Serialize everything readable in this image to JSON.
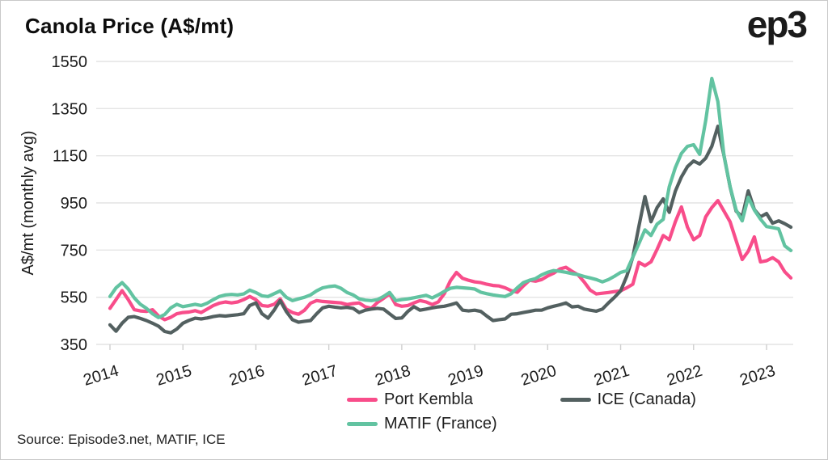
{
  "header": {
    "title": "Canola Price (A$/mt)",
    "logo": "ep3"
  },
  "source_note": "Source: Episode3.net, MATIF, ICE",
  "legend": [
    {
      "label": "Port Kembla",
      "color": "#f84d8a"
    },
    {
      "label": "ICE (Canada)",
      "color": "#536060"
    },
    {
      "label": "MATIF (France)",
      "color": "#62c3a1"
    }
  ],
  "chart_data": {
    "type": "line",
    "title": "Canola Price (A$/mt)",
    "ylabel": "A$/mt (monthly avg)",
    "xlabel": "",
    "ylim": [
      350,
      1550
    ],
    "yticks": [
      350,
      550,
      750,
      950,
      1150,
      1350,
      1550
    ],
    "xticks": [
      "2014",
      "2015",
      "2016",
      "2017",
      "2018",
      "2019",
      "2020",
      "2021",
      "2022",
      "2023"
    ],
    "x_frequency": "monthly",
    "x_range": "Jan 2014 - May 2023",
    "grid": "horizontal",
    "legend_position": "bottom",
    "colors": {
      "grid": "#e4e4e4",
      "tick": "#cfcfcf",
      "text": "#1c1c1c"
    },
    "series": [
      {
        "name": "Port Kembla",
        "color": "#f84d8a",
        "values": [
          503,
          540,
          578,
          540,
          497,
          492,
          490,
          497,
          470,
          455,
          465,
          480,
          485,
          487,
          493,
          485,
          500,
          515,
          525,
          530,
          526,
          530,
          540,
          553,
          540,
          515,
          512,
          520,
          543,
          500,
          485,
          478,
          495,
          525,
          536,
          532,
          530,
          528,
          526,
          519,
          523,
          526,
          509,
          503,
          528,
          545,
          564,
          519,
          512,
          515,
          526,
          536,
          530,
          519,
          530,
          565,
          620,
          655,
          630,
          622,
          615,
          612,
          605,
          600,
          598,
          590,
          578,
          571,
          598,
          622,
          618,
          625,
          640,
          652,
          670,
          677,
          660,
          645,
          615,
          580,
          564,
          567,
          570,
          574,
          577,
          590,
          605,
          698,
          684,
          700,
          753,
          812,
          794,
          870,
          933,
          847,
          794,
          812,
          891,
          930,
          960,
          915,
          870,
          790,
          710,
          745,
          806,
          700,
          705,
          718,
          700,
          658,
          632
        ]
      },
      {
        "name": "ICE (Canada)",
        "color": "#536060",
        "values": [
          433,
          406,
          440,
          465,
          468,
          460,
          451,
          440,
          427,
          405,
          399,
          415,
          440,
          452,
          461,
          458,
          462,
          468,
          472,
          470,
          473,
          476,
          480,
          515,
          526,
          480,
          461,
          495,
          536,
          490,
          455,
          444,
          448,
          451,
          480,
          505,
          512,
          508,
          505,
          507,
          503,
          485,
          495,
          500,
          503,
          500,
          480,
          460,
          462,
          490,
          510,
          495,
          500,
          505,
          509,
          512,
          518,
          526,
          495,
          492,
          495,
          490,
          470,
          451,
          455,
          458,
          478,
          480,
          485,
          490,
          495,
          495,
          505,
          512,
          518,
          526,
          509,
          512,
          500,
          495,
          491,
          500,
          526,
          550,
          577,
          639,
          720,
          850,
          977,
          870,
          930,
          967,
          910,
          1000,
          1060,
          1104,
          1128,
          1115,
          1140,
          1190,
          1275,
          1150,
          1018,
          915,
          891,
          1001,
          922,
          891,
          905,
          864,
          874,
          862,
          847
        ]
      },
      {
        "name": "MATIF (France)",
        "color": "#62c3a1",
        "values": [
          553,
          590,
          612,
          585,
          547,
          520,
          503,
          480,
          464,
          477,
          505,
          520,
          510,
          515,
          520,
          515,
          525,
          540,
          553,
          560,
          562,
          560,
          564,
          580,
          570,
          556,
          553,
          565,
          577,
          550,
          536,
          543,
          550,
          560,
          577,
          590,
          595,
          598,
          588,
          570,
          560,
          543,
          538,
          536,
          540,
          553,
          570,
          536,
          540,
          543,
          548,
          553,
          558,
          547,
          560,
          575,
          588,
          592,
          590,
          588,
          585,
          571,
          565,
          560,
          556,
          553,
          565,
          590,
          612,
          622,
          629,
          645,
          656,
          663,
          660,
          656,
          650,
          646,
          638,
          632,
          625,
          615,
          625,
          639,
          655,
          663,
          720,
          777,
          836,
          812,
          860,
          880,
          1019,
          1100,
          1160,
          1190,
          1197,
          1156,
          1300,
          1478,
          1380,
          1150,
          1020,
          920,
          874,
          974,
          920,
          881,
          850,
          845,
          840,
          768,
          748
        ]
      }
    ]
  }
}
